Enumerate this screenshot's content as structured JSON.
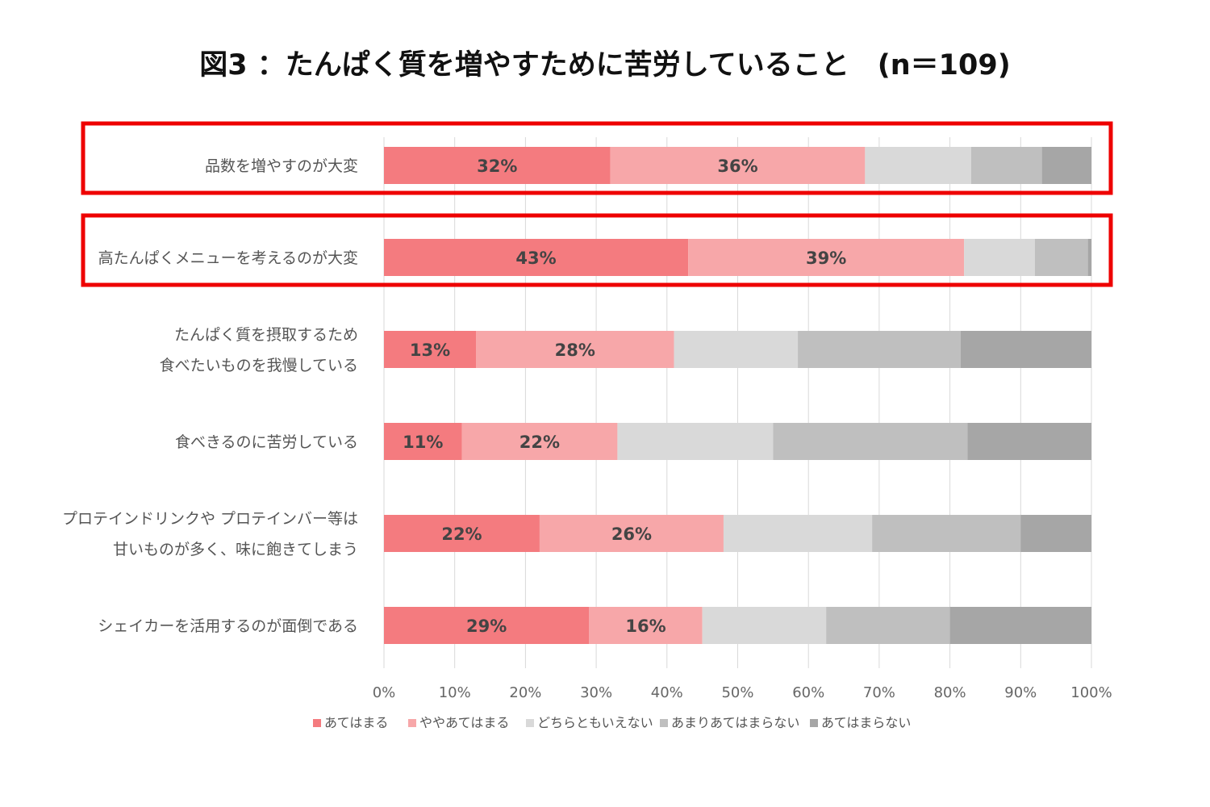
{
  "chart_data": {
    "type": "bar",
    "orientation": "horizontal",
    "stacked": true,
    "title": "図3 ：たんぱく質を増やすために苦労していること　(n＝109)",
    "categories": [
      [
        "品数を増やすのが大変"
      ],
      [
        "高たんぱくメニューを考えるのが大変"
      ],
      [
        "たんぱく質を摂取するため",
        "食べたいものを我慢している"
      ],
      [
        "食べきるのに苦労している"
      ],
      [
        "プロテインドリンクや プロテインバー等は",
        "甘いものが多く、味に飽きてしまう"
      ],
      [
        "シェイカーを活用するのが面倒である"
      ]
    ],
    "series": [
      {
        "name": "あてはまる",
        "color": "#f47b7f",
        "values": [
          32,
          43,
          13,
          11,
          22,
          29
        ],
        "labels": [
          "32%",
          "43%",
          "13%",
          "11%",
          "22%",
          "29%"
        ]
      },
      {
        "name": "ややあてはまる",
        "color": "#f7a7a9",
        "values": [
          36,
          39,
          28,
          22,
          26,
          16
        ],
        "labels": [
          "36%",
          "39%",
          "28%",
          "22%",
          "26%",
          "16%"
        ]
      },
      {
        "name": "どちらともいえない",
        "color": "#d9d9d9",
        "values": [
          15,
          10,
          17.5,
          22,
          21,
          17.5
        ]
      },
      {
        "name": "あまりあてはまらない",
        "color": "#bfbfbf",
        "values": [
          10,
          7.5,
          23,
          27.5,
          21,
          17.5
        ]
      },
      {
        "name": "あてはまらない",
        "color": "#a6a6a6",
        "values": [
          7,
          0.5,
          18.5,
          17.5,
          10,
          20
        ]
      }
    ],
    "xlim": [
      0,
      100
    ],
    "xticks": [
      "0%",
      "10%",
      "20%",
      "30%",
      "40%",
      "50%",
      "60%",
      "70%",
      "80%",
      "90%",
      "100%"
    ],
    "highlighted_categories": [
      0,
      1
    ],
    "highlight_color": "#ee0000",
    "grid": true,
    "legend": "bottom"
  }
}
